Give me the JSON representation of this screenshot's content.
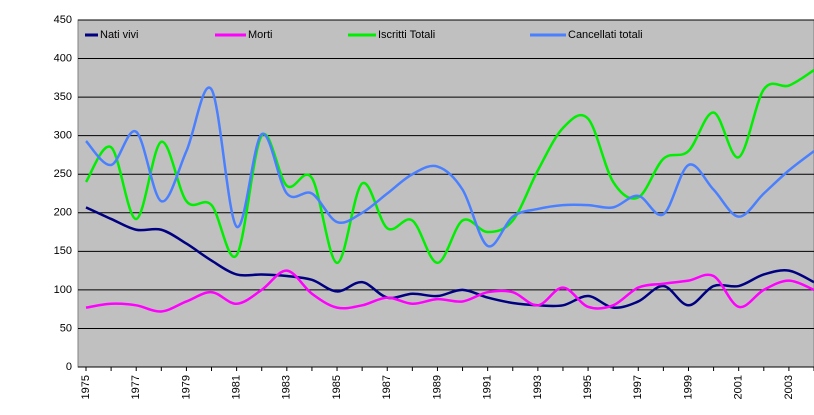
{
  "chart_data": {
    "type": "line",
    "categories": [
      "1975",
      null,
      "1977",
      null,
      "1979",
      null,
      "1981",
      null,
      "1983",
      null,
      "1985",
      null,
      "1987",
      null,
      "1989",
      null,
      "1991",
      null,
      "1993",
      null,
      "1995",
      null,
      "1997",
      null,
      "1999",
      null,
      "2001",
      null,
      "2003",
      null
    ],
    "series": [
      {
        "name": "Nati vivi",
        "color": "#000080",
        "values": [
          207,
          192,
          178,
          178,
          160,
          138,
          120,
          120,
          118,
          113,
          98,
          110,
          90,
          95,
          92,
          100,
          90,
          83,
          80,
          80,
          92,
          77,
          85,
          105,
          80,
          105,
          105,
          120,
          125,
          110
        ]
      },
      {
        "name": "Morti",
        "color": "#ff00ff",
        "values": [
          77,
          82,
          80,
          72,
          85,
          97,
          82,
          100,
          125,
          95,
          77,
          80,
          90,
          82,
          88,
          85,
          97,
          97,
          80,
          103,
          78,
          80,
          103,
          108,
          112,
          118,
          78,
          100,
          112,
          100
        ]
      },
      {
        "name": "Iscritti Totali",
        "color": "#00ee00",
        "values": [
          240,
          285,
          192,
          292,
          215,
          210,
          145,
          300,
          235,
          245,
          135,
          238,
          180,
          190,
          135,
          190,
          175,
          190,
          255,
          310,
          322,
          240,
          220,
          270,
          280,
          330,
          272,
          360,
          365,
          385
        ]
      },
      {
        "name": "Cancellati totali",
        "color": "#4a80ff",
        "values": [
          293,
          262,
          305,
          215,
          280,
          360,
          182,
          302,
          225,
          225,
          188,
          200,
          225,
          250,
          260,
          230,
          157,
          195,
          205,
          210,
          210,
          207,
          222,
          198,
          262,
          230,
          195,
          225,
          255,
          280
        ]
      }
    ],
    "ylim": [
      0,
      450
    ],
    "yticks": [
      0,
      50,
      100,
      150,
      200,
      250,
      300,
      350,
      400,
      450
    ],
    "grid": true,
    "legend": "top"
  }
}
